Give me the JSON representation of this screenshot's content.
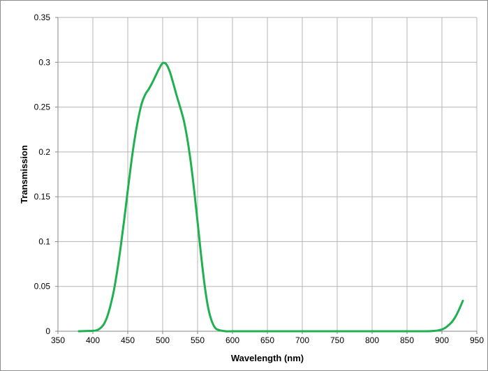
{
  "chart_data": {
    "type": "line",
    "title": "",
    "xlabel": "Wavelength (nm)",
    "ylabel": "Transmission",
    "xlim": [
      350,
      950
    ],
    "ylim": [
      0,
      0.35
    ],
    "x_ticks": [
      "350",
      "400",
      "450",
      "500",
      "550",
      "600",
      "650",
      "700",
      "750",
      "800",
      "850",
      "900",
      "950"
    ],
    "y_ticks": [
      "0",
      "0.05",
      "0.1",
      "0.15",
      "0.2",
      "0.25",
      "0.3",
      "0.35"
    ],
    "grid": true,
    "legend": "none",
    "series": [
      {
        "color": "#1fb050",
        "points": [
          [
            380,
            0
          ],
          [
            400,
            0.0005
          ],
          [
            405,
            0.001
          ],
          [
            410,
            0.003
          ],
          [
            415,
            0.007
          ],
          [
            420,
            0.015
          ],
          [
            425,
            0.028
          ],
          [
            430,
            0.045
          ],
          [
            435,
            0.068
          ],
          [
            440,
            0.095
          ],
          [
            445,
            0.125
          ],
          [
            450,
            0.157
          ],
          [
            455,
            0.188
          ],
          [
            460,
            0.215
          ],
          [
            465,
            0.237
          ],
          [
            470,
            0.254
          ],
          [
            475,
            0.264
          ],
          [
            480,
            0.27
          ],
          [
            485,
            0.277
          ],
          [
            490,
            0.285
          ],
          [
            495,
            0.293
          ],
          [
            500,
            0.299
          ],
          [
            505,
            0.298
          ],
          [
            510,
            0.29
          ],
          [
            515,
            0.277
          ],
          [
            520,
            0.263
          ],
          [
            525,
            0.25
          ],
          [
            530,
            0.236
          ],
          [
            535,
            0.216
          ],
          [
            540,
            0.19
          ],
          [
            545,
            0.158
          ],
          [
            550,
            0.122
          ],
          [
            555,
            0.085
          ],
          [
            560,
            0.052
          ],
          [
            565,
            0.027
          ],
          [
            570,
            0.012
          ],
          [
            575,
            0.004
          ],
          [
            580,
            0.0015
          ],
          [
            590,
            0
          ],
          [
            600,
            0
          ],
          [
            650,
            0
          ],
          [
            700,
            0
          ],
          [
            750,
            0
          ],
          [
            800,
            0
          ],
          [
            850,
            0
          ],
          [
            880,
            0
          ],
          [
            890,
            0.0005
          ],
          [
            895,
            0.001
          ],
          [
            900,
            0.002
          ],
          [
            905,
            0.004
          ],
          [
            910,
            0.007
          ],
          [
            915,
            0.011
          ],
          [
            920,
            0.017
          ],
          [
            925,
            0.025
          ],
          [
            930,
            0.034
          ]
        ]
      }
    ]
  }
}
